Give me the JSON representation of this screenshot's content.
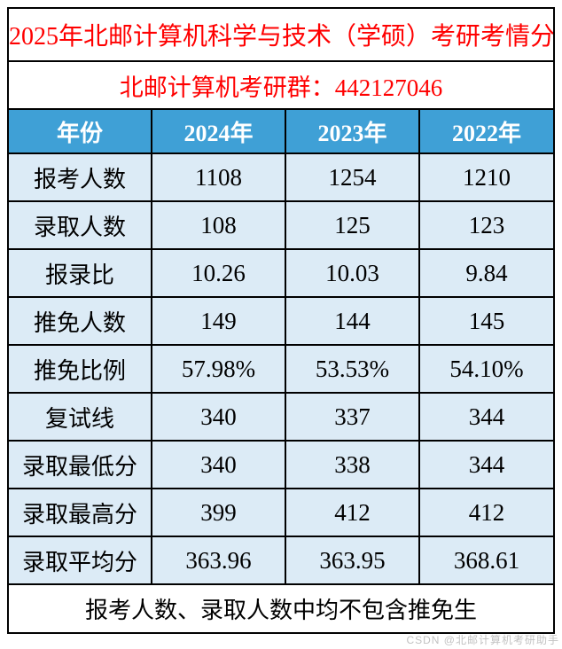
{
  "chart_data": {
    "type": "table",
    "title": "2025年北邮计算机科学与技术（学硕）考研考情分析",
    "subtitle": "北邮计算机考研群：442127046",
    "columns": [
      "年份",
      "2024年",
      "2023年",
      "2022年"
    ],
    "rows": [
      {
        "label": "报考人数",
        "values": [
          "1108",
          "1254",
          "1210"
        ]
      },
      {
        "label": "录取人数",
        "values": [
          "108",
          "125",
          "123"
        ]
      },
      {
        "label": "报录比",
        "values": [
          "10.26",
          "10.03",
          "9.84"
        ]
      },
      {
        "label": "推免人数",
        "values": [
          "149",
          "144",
          "145"
        ]
      },
      {
        "label": "推免比例",
        "values": [
          "57.98%",
          "53.53%",
          "54.10%"
        ]
      },
      {
        "label": "复试线",
        "values": [
          "340",
          "337",
          "344"
        ]
      },
      {
        "label": "录取最低分",
        "values": [
          "340",
          "338",
          "344"
        ]
      },
      {
        "label": "录取最高分",
        "values": [
          "399",
          "412",
          "412"
        ]
      },
      {
        "label": "录取平均分",
        "values": [
          "363.96",
          "363.95",
          "368.61"
        ]
      }
    ],
    "footnote": "报考人数、录取人数中均不包含推免生",
    "legend_position": "none",
    "grid": "on"
  },
  "watermark": {
    "text": "CSDN @北邮计算机考研助手"
  },
  "colors": {
    "title_red": "#ff0000",
    "header_bg": "#3fa0d6",
    "header_text": "#ffffff",
    "cell_bg": "#dcebf6",
    "border": "#000000",
    "watermark_gray": "#c2c2c2"
  }
}
